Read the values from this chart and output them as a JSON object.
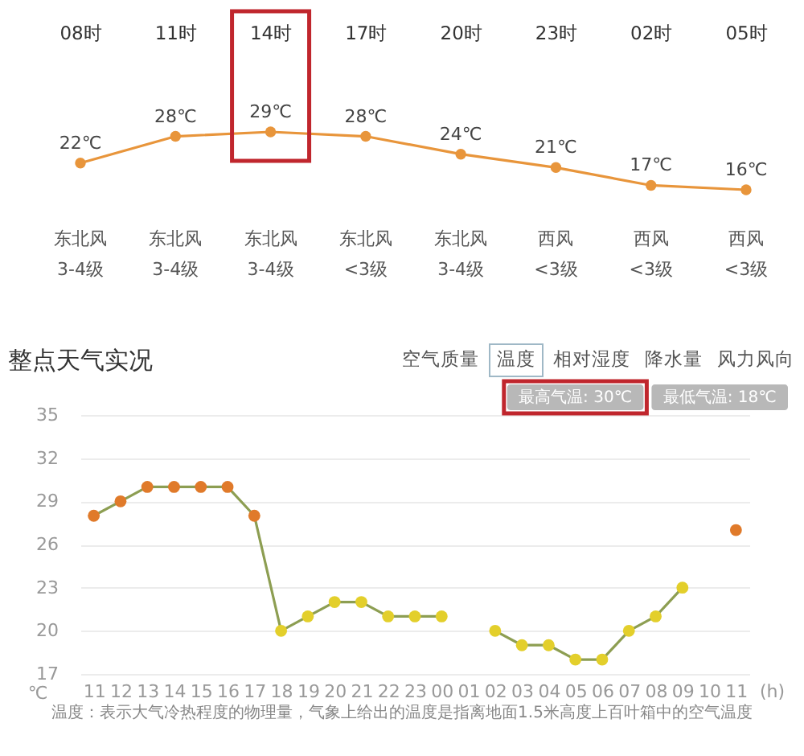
{
  "chart_data": [
    {
      "type": "line",
      "categories": [
        "08时",
        "11时",
        "14时",
        "17时",
        "20时",
        "23时",
        "02时",
        "05时"
      ],
      "values": [
        22,
        28,
        29,
        28,
        24,
        21,
        17,
        16
      ],
      "value_labels": [
        "22℃",
        "28℃",
        "29℃",
        "28℃",
        "24℃",
        "21℃",
        "17℃",
        "16℃"
      ],
      "color": "#e8953b",
      "marker": "circle",
      "line_style": "solid",
      "tick_labels": "x",
      "annotations": [
        "东北风",
        "3-4级",
        "东北风",
        "3-4级",
        "东北风",
        "3-4级",
        "东北风",
        "<3级",
        "东北风",
        "3-4级",
        "西风",
        "<3级",
        "西风",
        "<3级",
        "西风",
        "<3级"
      ]
    },
    {
      "type": "line",
      "title": "整点天气实况",
      "categories": [
        "11",
        "12",
        "13",
        "14",
        "15",
        "16",
        "17",
        "18",
        "19",
        "20",
        "21",
        "22",
        "23",
        "00",
        "01",
        "02",
        "03",
        "04",
        "05",
        "06",
        "07",
        "08",
        "09",
        "10",
        "11"
      ],
      "values": [
        28,
        29,
        30,
        30,
        30,
        30,
        28,
        20,
        21,
        22,
        22,
        21,
        21,
        21,
        null,
        20,
        19,
        19,
        18,
        18,
        20,
        21,
        23,
        null,
        27
      ],
      "color": "#8d9e52",
      "colors": [
        "#e07a2a",
        "#e07a2a",
        "#e07a2a",
        "#e07a2a",
        "#e07a2a",
        "#e07a2a",
        "#e07a2a",
        "#e3cf2b",
        "#e3cf2b",
        "#e3cf2b",
        "#e3cf2b",
        "#e3cf2b",
        "#e3cf2b",
        "#e3cf2b",
        null,
        "#e3cf2b",
        "#e3cf2b",
        "#e3cf2b",
        "#e3cf2b",
        "#e3cf2b",
        "#e3cf2b",
        "#e3cf2b",
        "#e3cf2b",
        null,
        "#e07a2a"
      ],
      "marker": "circle",
      "line_style": "solid",
      "xlabel": "(h)",
      "ylabel": "℃",
      "ylim": [
        17,
        35
      ],
      "yticks": [
        17,
        20,
        23,
        26,
        29,
        32,
        35
      ],
      "grid": "y",
      "annotations": [
        "空气质量",
        "温度",
        "相对湿度",
        "降水量",
        "风力风向",
        "最高气温: 30℃",
        "最低气温: 18℃",
        "温度：表示大气冷热程度的物理量，气象上给出的温度是指离地面1.5米高度上百叶箱中的空气温度"
      ]
    }
  ]
}
